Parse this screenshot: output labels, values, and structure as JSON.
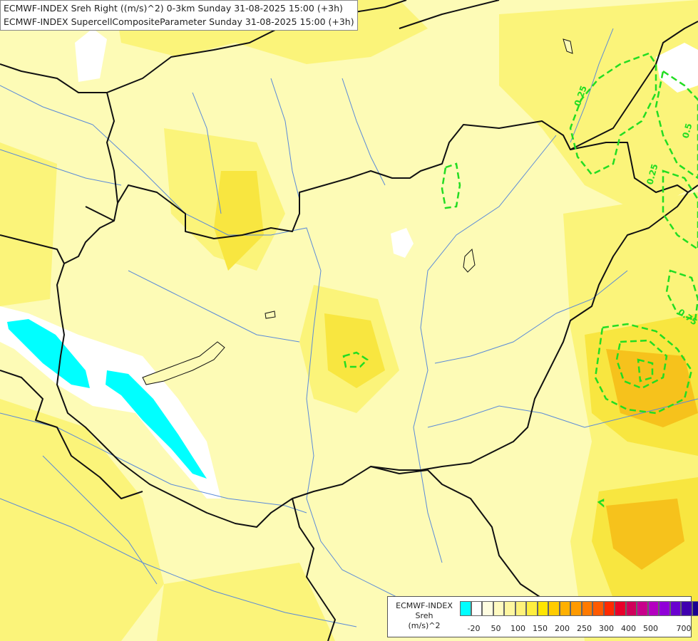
{
  "header": {
    "line1": "ECMWF-INDEX Sreh Right ((m/s)^2) 0-3km Sunday 31-08-2025 15:00 (+3h)",
    "line2": "ECMWF-INDEX SupercellCompositeParameter Sunday 31-08-2025 15:00 (+3h)"
  },
  "legend": {
    "title_lines": [
      "ECMWF-INDEX",
      "Sreh",
      "(m/s)^2"
    ],
    "colors": [
      "#00ffff",
      "#ffffff",
      "#fffde0",
      "#fffac0",
      "#fff7a0",
      "#fff27a",
      "#ffee40",
      "#ffe500",
      "#ffcc00",
      "#ffb000",
      "#ff9a00",
      "#ff7a00",
      "#ff5a00",
      "#ff2a00",
      "#e8002a",
      "#d0005a",
      "#c8008c",
      "#b400c0",
      "#9000d8",
      "#6a00d0",
      "#4000b0",
      "#1a0090"
    ],
    "tick_labels": [
      "-20",
      "50",
      "100",
      "150",
      "200",
      "250",
      "300",
      "400",
      "500",
      "700"
    ]
  },
  "contours": {
    "color": "#22dd22",
    "labels": [
      "0.25",
      "0.5",
      "0.25",
      "0.75"
    ]
  },
  "colors": {
    "field_base": "#fdfbb6",
    "field_mid": "#fbf47a",
    "field_high": "#f8e640",
    "field_orange": "#f6c21c",
    "negative": "#00ffff",
    "border": "#111111",
    "river": "#5a8ad8"
  }
}
